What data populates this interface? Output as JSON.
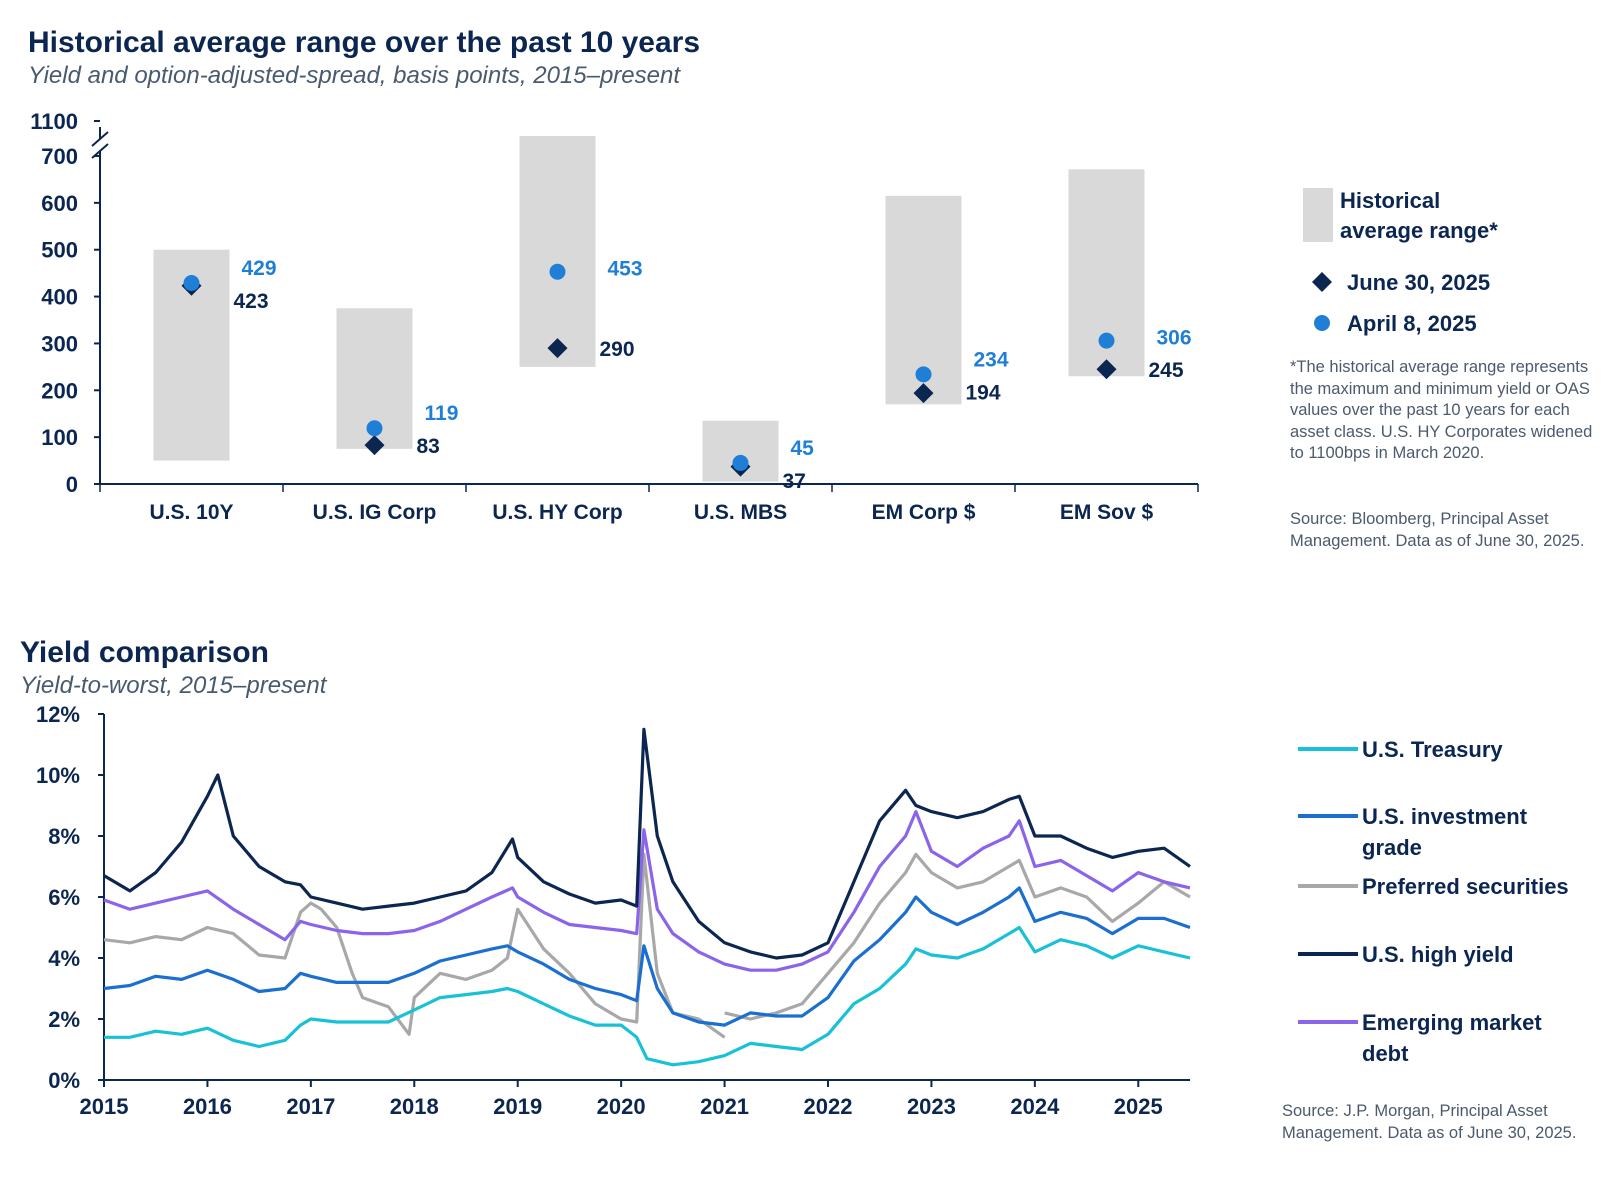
{
  "top": {
    "title": "Historical average range over the past 10 years",
    "subtitle": "Yield and option-adjusted-spread, basis points, 2015–present",
    "legend": {
      "range_line1": "Historical",
      "range_line2": "average range*",
      "june": "June 30, 2025",
      "april": "April 8, 2025"
    },
    "note": "*The historical average range represents the maximum and minimum yield or OAS values over the past 10 years for each asset class. U.S. HY Corporates widened to 1100bps in March 2020.",
    "source": "Source: Bloomberg, Principal Asset Management. Data as of June 30, 2025."
  },
  "bottom": {
    "title": "Yield comparison",
    "subtitle": "Yield-to-worst, 2015–present",
    "source": "Source: J.P. Morgan, Principal Asset Management. Data as of June 30, 2025."
  },
  "colors": {
    "range_bar": "#d9d9d9",
    "june_marker": "#0b2650",
    "april_marker": "#1f7fd6",
    "treasury": "#18c1d6",
    "ig": "#1a6fd0",
    "preferred": "#a8a8a8",
    "hy": "#0b2650",
    "em": "#8a64ea"
  },
  "chart_data": [
    {
      "type": "bar",
      "title": "Historical average range over the past 10 years",
      "subtitle": "Yield and option-adjusted-spread, basis points, 2015–present",
      "categories": [
        "U.S. 10Y",
        "U.S. IG Corp",
        "U.S. HY Corp",
        "U.S. MBS",
        "EM Corp $",
        "EM Sov $"
      ],
      "y_ticks": [
        "0",
        "100",
        "200",
        "300",
        "400",
        "500",
        "600",
        "700",
        "1100"
      ],
      "axis_break": "700 to 1100",
      "range_min": [
        50,
        75,
        250,
        5,
        170,
        230
      ],
      "range_max": [
        500,
        375,
        1100,
        135,
        615,
        720
      ],
      "series": [
        {
          "name": "June 30, 2025",
          "marker": "diamond",
          "values": [
            423,
            83,
            290,
            37,
            194,
            245
          ]
        },
        {
          "name": "April 8, 2025",
          "marker": "circle",
          "values": [
            429,
            119,
            453,
            45,
            234,
            306
          ]
        }
      ],
      "legend": "right"
    },
    {
      "type": "line",
      "title": "Yield comparison",
      "subtitle": "Yield-to-worst, 2015–present",
      "x_ticks": [
        "2015",
        "2016",
        "2017",
        "2018",
        "2019",
        "2020",
        "2021",
        "2022",
        "2023",
        "2024",
        "2025"
      ],
      "y_ticks": [
        "0%",
        "2%",
        "4%",
        "6%",
        "8%",
        "10%",
        "12%"
      ],
      "xlim": [
        2015.0,
        2025.5
      ],
      "ylim": [
        0,
        12
      ],
      "legend": "right",
      "series": [
        {
          "name": "U.S. Treasury",
          "x": [
            2015.0,
            2015.25,
            2015.5,
            2015.75,
            2016.0,
            2016.25,
            2016.5,
            2016.75,
            2016.9,
            2017.0,
            2017.25,
            2017.5,
            2017.75,
            2018.0,
            2018.25,
            2018.5,
            2018.75,
            2018.9,
            2019.0,
            2019.25,
            2019.5,
            2019.75,
            2020.0,
            2020.15,
            2020.25,
            2020.5,
            2020.75,
            2021.0,
            2021.25,
            2021.5,
            2021.75,
            2022.0,
            2022.25,
            2022.5,
            2022.75,
            2022.85,
            2023.0,
            2023.25,
            2023.5,
            2023.75,
            2023.85,
            2024.0,
            2024.25,
            2024.5,
            2024.75,
            2025.0,
            2025.25,
            2025.5
          ],
          "y": [
            1.4,
            1.4,
            1.6,
            1.5,
            1.7,
            1.3,
            1.1,
            1.3,
            1.8,
            2.0,
            1.9,
            1.9,
            1.9,
            2.3,
            2.7,
            2.8,
            2.9,
            3.0,
            2.9,
            2.5,
            2.1,
            1.8,
            1.8,
            1.4,
            0.7,
            0.5,
            0.6,
            0.8,
            1.2,
            1.1,
            1.0,
            1.5,
            2.5,
            3.0,
            3.8,
            4.3,
            4.1,
            4.0,
            4.3,
            4.8,
            5.0,
            4.2,
            4.6,
            4.4,
            4.0,
            4.4,
            4.2,
            4.0
          ]
        },
        {
          "name": "U.S. investment grade",
          "x": [
            2015.0,
            2015.25,
            2015.5,
            2015.75,
            2016.0,
            2016.25,
            2016.5,
            2016.75,
            2016.9,
            2017.0,
            2017.25,
            2017.5,
            2017.75,
            2018.0,
            2018.25,
            2018.5,
            2018.75,
            2018.9,
            2019.0,
            2019.25,
            2019.5,
            2019.75,
            2020.0,
            2020.15,
            2020.22,
            2020.35,
            2020.5,
            2020.75,
            2021.0,
            2021.25,
            2021.5,
            2021.75,
            2022.0,
            2022.25,
            2022.5,
            2022.75,
            2022.85,
            2023.0,
            2023.25,
            2023.5,
            2023.75,
            2023.85,
            2024.0,
            2024.25,
            2024.5,
            2024.75,
            2025.0,
            2025.25,
            2025.5
          ],
          "y": [
            3.0,
            3.1,
            3.4,
            3.3,
            3.6,
            3.3,
            2.9,
            3.0,
            3.5,
            3.4,
            3.2,
            3.2,
            3.2,
            3.5,
            3.9,
            4.1,
            4.3,
            4.4,
            4.2,
            3.8,
            3.3,
            3.0,
            2.8,
            2.6,
            4.4,
            3.0,
            2.2,
            1.9,
            1.8,
            2.2,
            2.1,
            2.1,
            2.7,
            3.9,
            4.6,
            5.5,
            6.0,
            5.5,
            5.1,
            5.5,
            6.0,
            6.3,
            5.2,
            5.5,
            5.3,
            4.8,
            5.3,
            5.3,
            5.0
          ]
        },
        {
          "name": "Preferred securities",
          "x": [
            2015.0,
            2015.25,
            2015.5,
            2015.75,
            2016.0,
            2016.25,
            2016.5,
            2016.75,
            2016.9,
            2017.0,
            2017.1,
            2017.25,
            2017.4,
            2017.5,
            2017.75,
            2017.95,
            2018.0,
            2018.25,
            2018.5,
            2018.75,
            2018.9,
            2019.0,
            2019.25,
            2019.5,
            2019.75,
            2020.0,
            2020.15,
            2020.22,
            2020.35,
            2020.5,
            2020.75,
            2021.0
          ],
          "y": [
            4.6,
            4.5,
            4.7,
            4.6,
            5.0,
            4.8,
            4.1,
            4.0,
            5.5,
            5.8,
            5.6,
            5.0,
            3.5,
            2.7,
            2.4,
            1.5,
            2.7,
            3.5,
            3.3,
            3.6,
            4.0,
            5.6,
            4.3,
            3.5,
            2.5,
            2.0,
            1.9,
            7.4,
            3.5,
            2.2,
            2.0,
            1.4
          ]
        },
        {
          "name": "Preferred securities",
          "x": [
            2021.0,
            2021.25,
            2021.5,
            2021.75,
            2022.0,
            2022.25,
            2022.5,
            2022.75,
            2022.85,
            2023.0,
            2023.25,
            2023.5,
            2023.75,
            2023.85,
            2024.0,
            2024.25,
            2024.5,
            2024.75,
            2025.0,
            2025.25,
            2025.5
          ],
          "y": [
            2.2,
            2.0,
            2.2,
            2.5,
            3.5,
            4.5,
            5.8,
            6.8,
            7.4,
            6.8,
            6.3,
            6.5,
            7.0,
            7.2,
            6.0,
            6.3,
            6.0,
            5.2,
            5.8,
            6.5,
            6.0
          ]
        },
        {
          "name": "U.S. high yield",
          "x": [
            2015.0,
            2015.25,
            2015.5,
            2015.75,
            2016.0,
            2016.1,
            2016.25,
            2016.5,
            2016.75,
            2016.9,
            2017.0,
            2017.25,
            2017.5,
            2017.75,
            2018.0,
            2018.25,
            2018.5,
            2018.75,
            2018.95,
            2019.0,
            2019.25,
            2019.5,
            2019.75,
            2020.0,
            2020.15,
            2020.22,
            2020.35,
            2020.5,
            2020.75,
            2021.0,
            2021.25,
            2021.5,
            2021.75,
            2022.0,
            2022.25,
            2022.5,
            2022.75,
            2022.85,
            2023.0,
            2023.25,
            2023.5,
            2023.75,
            2023.85,
            2024.0,
            2024.25,
            2024.5,
            2024.75,
            2025.0,
            2025.25,
            2025.5
          ],
          "y": [
            6.7,
            6.2,
            6.8,
            7.8,
            9.3,
            10.0,
            8.0,
            7.0,
            6.5,
            6.4,
            6.0,
            5.8,
            5.6,
            5.7,
            5.8,
            6.0,
            6.2,
            6.8,
            7.9,
            7.3,
            6.5,
            6.1,
            5.8,
            5.9,
            5.7,
            11.5,
            8.0,
            6.5,
            5.2,
            4.5,
            4.2,
            4.0,
            4.1,
            4.5,
            6.5,
            8.5,
            9.5,
            9.0,
            8.8,
            8.6,
            8.8,
            9.2,
            9.3,
            8.0,
            8.0,
            7.6,
            7.3,
            7.5,
            7.6,
            7.0
          ]
        },
        {
          "name": "Emerging market debt",
          "x": [
            2015.0,
            2015.25,
            2015.5,
            2015.75,
            2016.0,
            2016.25,
            2016.5,
            2016.75,
            2016.9,
            2017.0,
            2017.25,
            2017.5,
            2017.75,
            2018.0,
            2018.25,
            2018.5,
            2018.75,
            2018.95,
            2019.0,
            2019.25,
            2019.5,
            2019.75,
            2020.0,
            2020.15,
            2020.22,
            2020.35,
            2020.5,
            2020.75,
            2021.0,
            2021.25,
            2021.5,
            2021.75,
            2022.0,
            2022.25,
            2022.5,
            2022.75,
            2022.85,
            2023.0,
            2023.25,
            2023.5,
            2023.75,
            2023.85,
            2024.0,
            2024.25,
            2024.5,
            2024.75,
            2025.0,
            2025.25,
            2025.5
          ],
          "y": [
            5.9,
            5.6,
            5.8,
            6.0,
            6.2,
            5.6,
            5.1,
            4.6,
            5.2,
            5.1,
            4.9,
            4.8,
            4.8,
            4.9,
            5.2,
            5.6,
            6.0,
            6.3,
            6.0,
            5.5,
            5.1,
            5.0,
            4.9,
            4.8,
            8.2,
            5.6,
            4.8,
            4.2,
            3.8,
            3.6,
            3.6,
            3.8,
            4.2,
            5.5,
            7.0,
            8.0,
            8.8,
            7.5,
            7.0,
            7.6,
            8.0,
            8.5,
            7.0,
            7.2,
            6.7,
            6.2,
            6.8,
            6.5,
            6.3
          ]
        }
      ]
    }
  ]
}
